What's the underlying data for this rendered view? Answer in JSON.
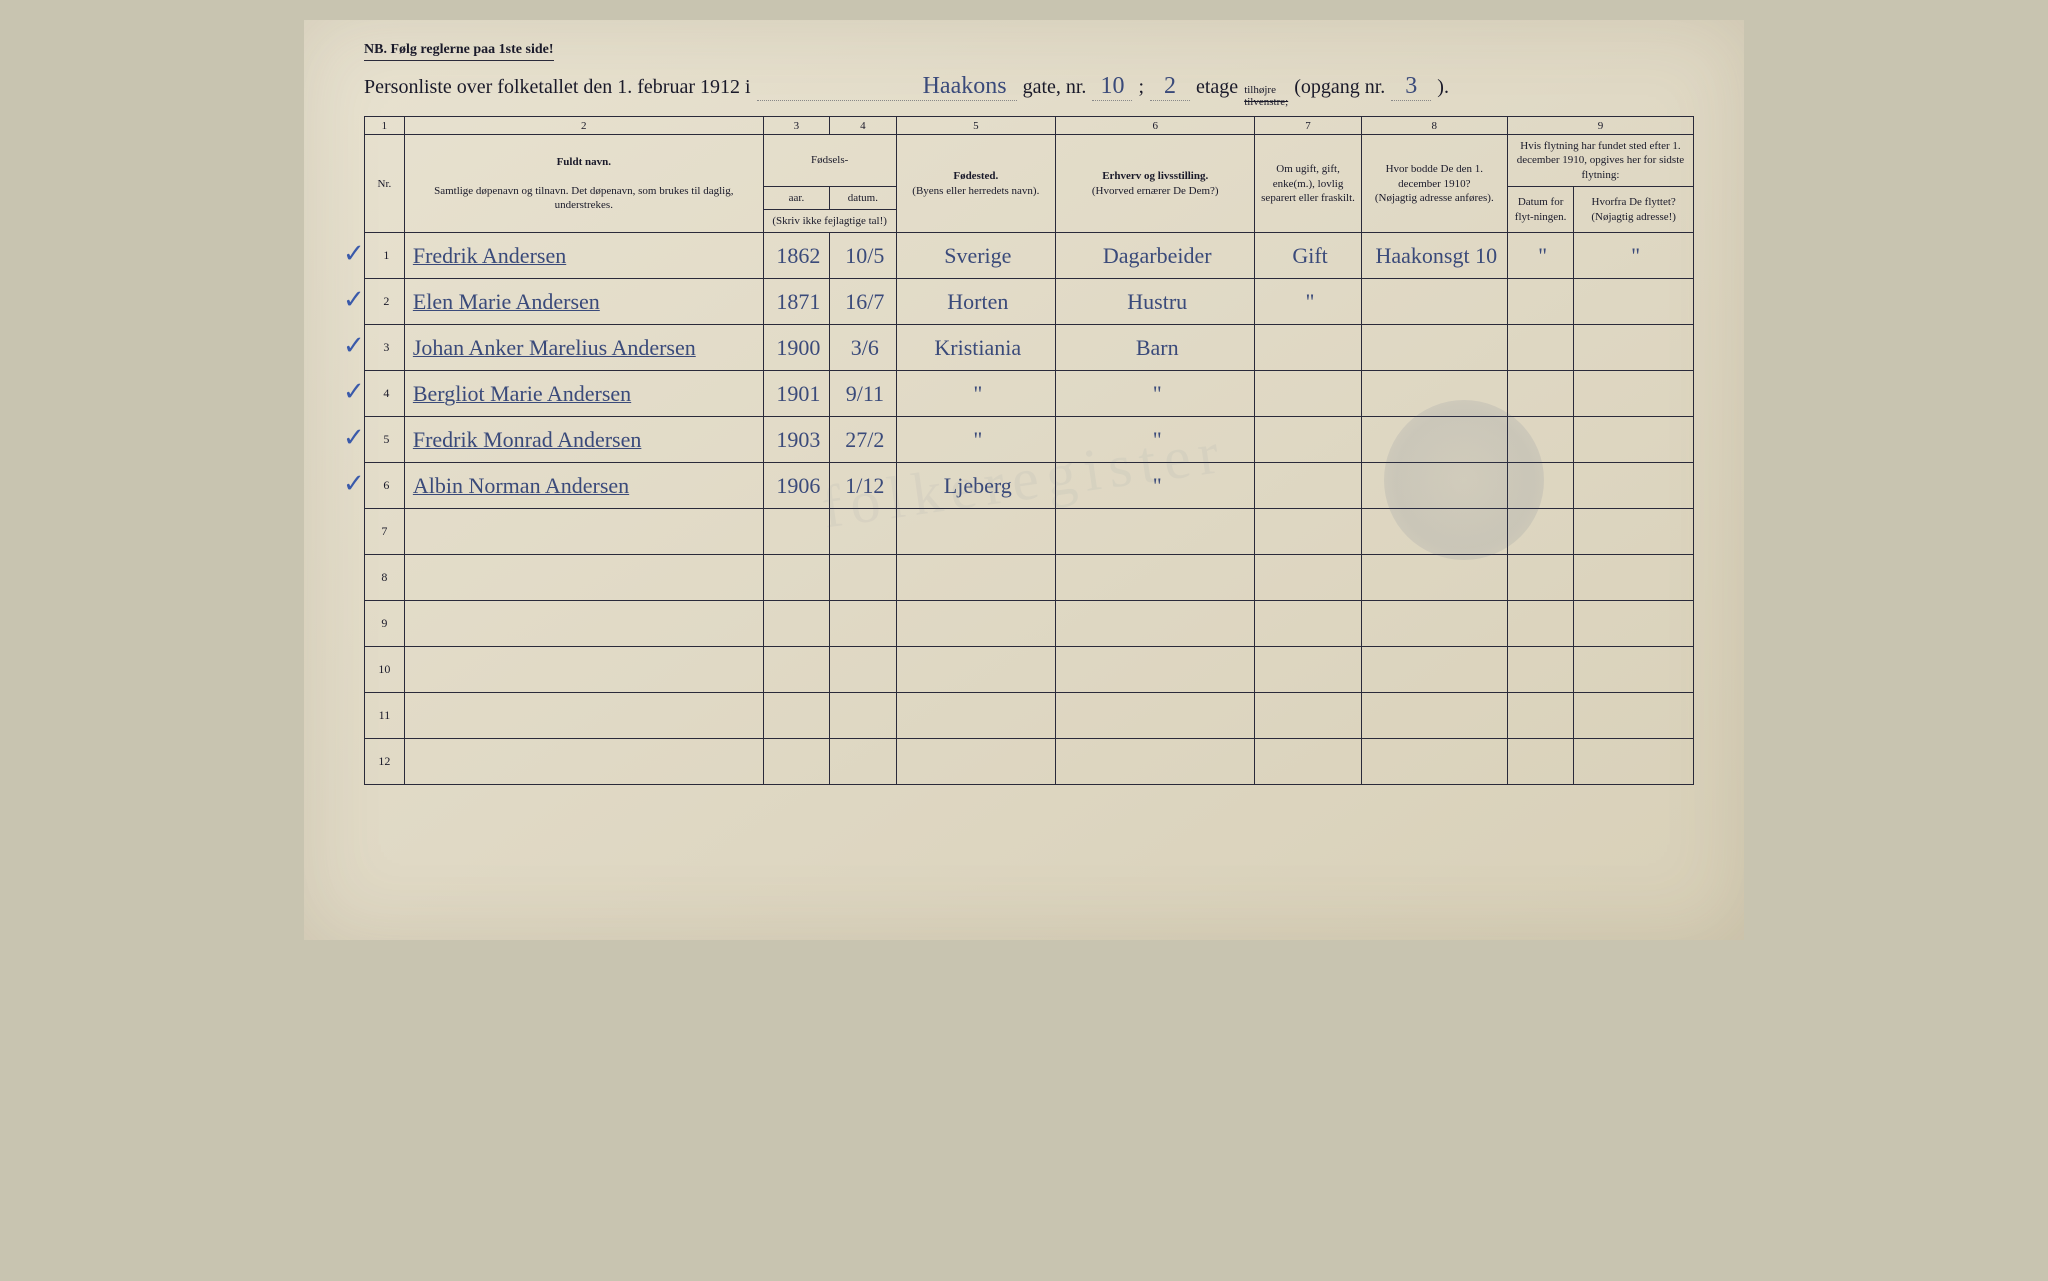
{
  "nb": "NB.  Følg reglerne paa 1ste side!",
  "title": {
    "prefix": "Personliste over folketallet den 1. februar 1912 i",
    "street": "Haakons",
    "gate_label": "gate, nr.",
    "nr": "10",
    "semicolon": ";",
    "etage": "2",
    "etage_label": "etage",
    "tilhojre": "tilhøjre",
    "tilvenstre_strike": "tilvenstre;",
    "opgang_label": "(opgang nr.",
    "opgang": "3",
    "close": ")."
  },
  "colnums": [
    "1",
    "2",
    "3",
    "4",
    "5",
    "6",
    "7",
    "8",
    "9"
  ],
  "headers": {
    "nr": "Nr.",
    "fuldt_navn": "Fuldt navn.",
    "navn_sub": "Samtlige døpenavn og tilnavn. Det døpenavn, som brukes til daglig, understrekes.",
    "fodsels": "Fødsels-",
    "aar": "aar.",
    "datum": "datum.",
    "skriv_ikke": "(Skriv ikke fejlagtige tal!)",
    "fodested": "Fødested.",
    "fodested_sub": "(Byens eller herredets navn).",
    "erhverv": "Erhverv og livsstilling.",
    "erhverv_sub": "(Hvorved ernærer De Dem?)",
    "ugift": "Om ugift, gift, enke(m.), lovlig separert eller fraskilt.",
    "bodde": "Hvor bodde De den 1. december 1910?",
    "bodde_sub": "(Nøjagtig adresse anføres).",
    "flytning": "Hvis flytning har fundet sted efter 1. december 1910, opgives her for sidste flytning:",
    "flytning_datum": "Datum for flyt-ningen.",
    "flytning_hvorfra": "Hvorfra De flyttet? (Nøjagtig adresse!)"
  },
  "rows": [
    {
      "nr": "1",
      "check": "✓",
      "navn": "Fredrik Andersen",
      "aar": "1862",
      "datum": "10/5",
      "sted": "Sverige",
      "erhverv": "Dagarbeider",
      "gift": "Gift",
      "bodde": "Haakonsgt 10",
      "fd": "\"",
      "fh": "\""
    },
    {
      "nr": "2",
      "check": "✓",
      "navn": "Elen Marie Andersen",
      "aar": "1871",
      "datum": "16/7",
      "sted": "Horten",
      "erhverv": "Hustru",
      "gift": "\"",
      "bodde": "",
      "fd": "",
      "fh": ""
    },
    {
      "nr": "3",
      "check": "✓",
      "navn": "Johan Anker Marelius Andersen",
      "aar": "1900",
      "datum": "3/6",
      "sted": "Kristiania",
      "erhverv": "Barn",
      "gift": "",
      "bodde": "",
      "fd": "",
      "fh": ""
    },
    {
      "nr": "4",
      "check": "✓",
      "navn": "Bergliot Marie Andersen",
      "aar": "1901",
      "datum": "9/11",
      "sted": "\"",
      "erhverv": "\"",
      "gift": "",
      "bodde": "",
      "fd": "",
      "fh": ""
    },
    {
      "nr": "5",
      "check": "✓",
      "navn": "Fredrik Monrad Andersen",
      "aar": "1903",
      "datum": "27/2",
      "sted": "\"",
      "erhverv": "\"",
      "gift": "",
      "bodde": "",
      "fd": "",
      "fh": ""
    },
    {
      "nr": "6",
      "check": "✓",
      "navn": "Albin Norman Andersen",
      "aar": "1906",
      "datum": "1/12",
      "sted": "Ljeberg",
      "erhverv": "\"",
      "gift": "",
      "bodde": "",
      "fd": "",
      "fh": ""
    }
  ],
  "empty_rows": [
    "7",
    "8",
    "9",
    "10",
    "11",
    "12"
  ],
  "colors": {
    "paper": "#e4ddc8",
    "ink": "#1a1a2a",
    "pen": "#3a4a7a",
    "border": "#2a2a3a"
  },
  "column_widths_pct": [
    3,
    27,
    5,
    5,
    12,
    15,
    8,
    11,
    5,
    9
  ]
}
